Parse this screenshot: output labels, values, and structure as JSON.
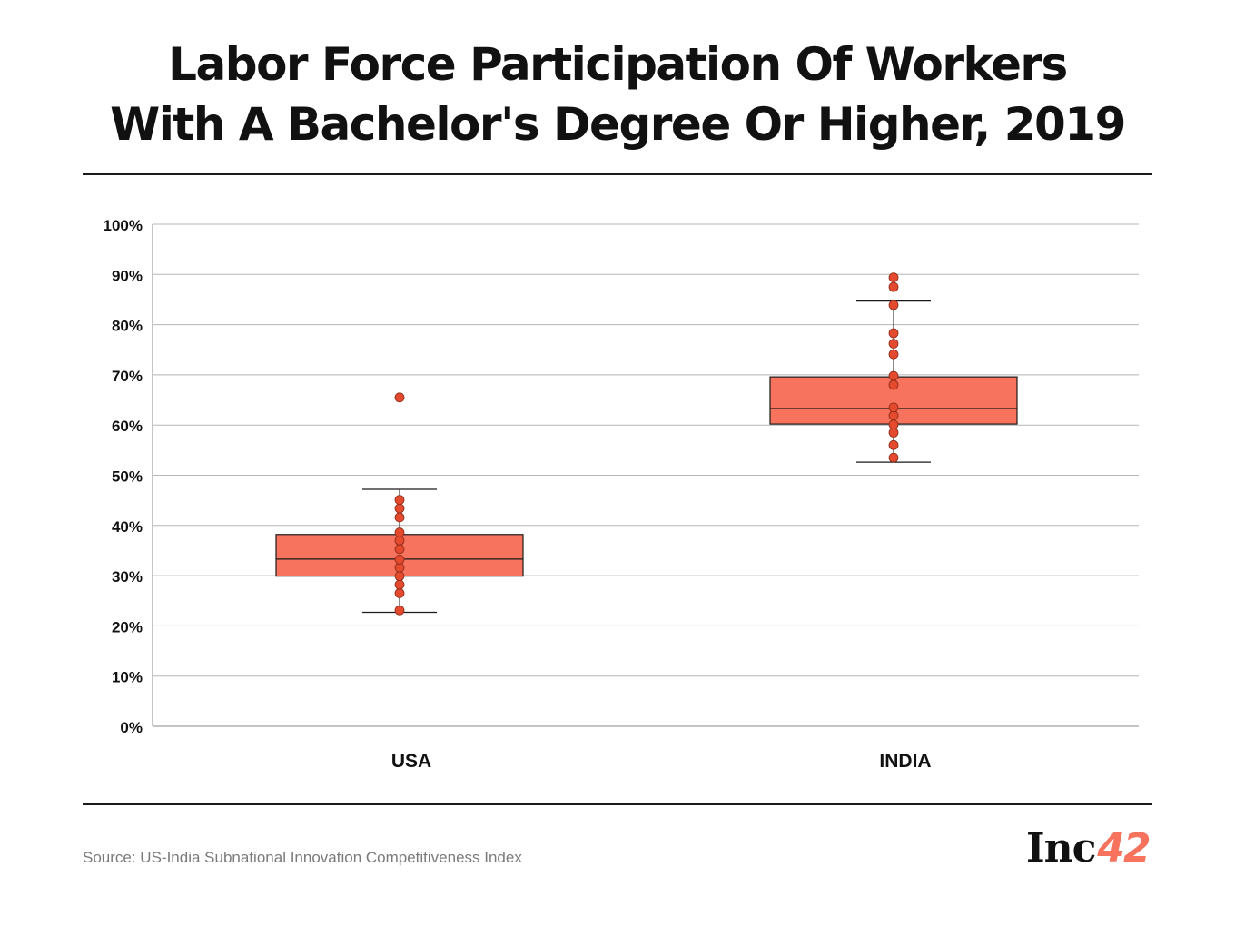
{
  "title_lines": [
    "Labor Force Participation Of Workers",
    "With A Bachelor's Degree Or Higher, 2019"
  ],
  "source": "Source: US-India Subnational Innovation Competitiveness Index",
  "logo": {
    "text": "Inc",
    "number": "42"
  },
  "colors": {
    "box_fill": "#F7735D",
    "dot_fill": "#E34A2E",
    "line": "#1a1a1a",
    "grid": "#b5b5b5"
  },
  "chart_data": {
    "type": "boxplot",
    "title": "Labor Force Participation Of Workers With A Bachelor's Degree Or Higher, 2019",
    "xlabel": "",
    "ylabel": "",
    "ylim": [
      0,
      100
    ],
    "y_ticks": [
      "0%",
      "10%",
      "20%",
      "30%",
      "40%",
      "50%",
      "60%",
      "70%",
      "80%",
      "90%",
      "100%"
    ],
    "grid": true,
    "categories": [
      "USA",
      "INDIA"
    ],
    "boxes": [
      {
        "category": "USA",
        "whisker_low": 22.7,
        "q1": 29.9,
        "median": 33.3,
        "q3": 38.2,
        "whisker_high": 47.2,
        "points": [
          23.1,
          26.5,
          28.2,
          29.9,
          31.6,
          33.2,
          35.3,
          37.0,
          38.6,
          41.6,
          43.4,
          45.1,
          65.5
        ]
      },
      {
        "category": "INDIA",
        "whisker_low": 52.6,
        "q1": 60.2,
        "median": 63.3,
        "q3": 69.6,
        "whisker_high": 84.7,
        "points": [
          53.5,
          56.0,
          58.5,
          60.1,
          61.9,
          63.5,
          68.0,
          69.8,
          74.1,
          76.2,
          78.3,
          83.9,
          87.5,
          89.4
        ]
      }
    ]
  }
}
